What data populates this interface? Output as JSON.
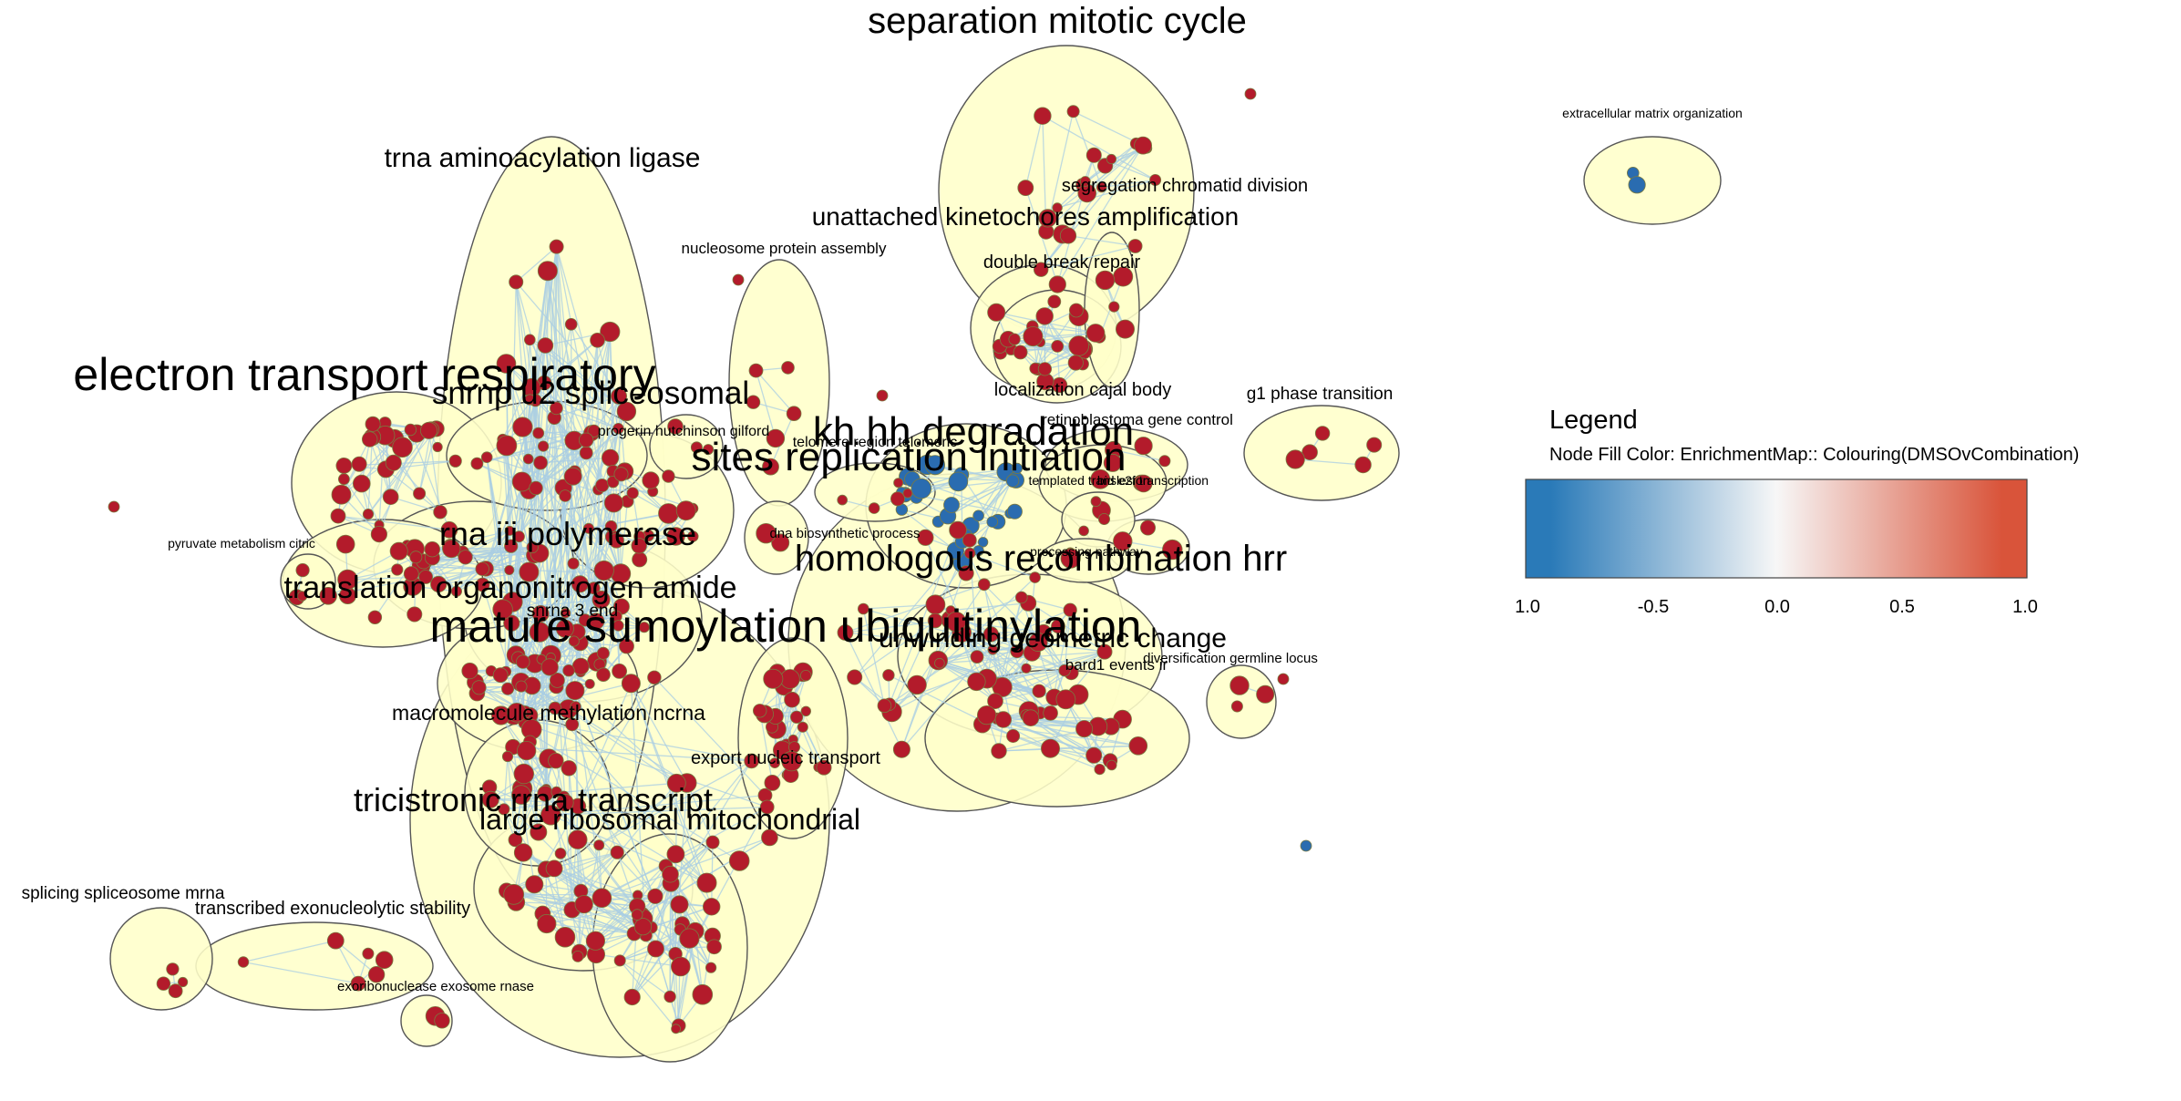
{
  "colors": {
    "cluster_fill": "#ffffc9",
    "cluster_stroke": "#555555",
    "edge": "#a9cde3",
    "node_up": "#b31b2b",
    "node_down": "#2a6cb0",
    "gradient_low": "#2a7ab8",
    "gradient_mid": "#f7f7f7",
    "gradient_high": "#d9543a"
  },
  "legend": {
    "title": "Legend",
    "subtitle": "Node Fill Color: EnrichmentMap:: Colouring(DMSOvCombination)",
    "ticks": [
      "1.0",
      "-0.5",
      "0.0",
      "0.5",
      "1.0"
    ]
  },
  "clusters": [
    {
      "label": "separation mitotic cycle"
    },
    {
      "label": "extracellular matrix organization"
    },
    {
      "label": "trna aminoacylation ligase"
    },
    {
      "label": "segregation chromatid division"
    },
    {
      "label": "unattached kinetochores amplification"
    },
    {
      "label": "nucleosome protein assembly"
    },
    {
      "label": "double break repair"
    },
    {
      "label": "electron transport respiratory"
    },
    {
      "label": "localization cajal body"
    },
    {
      "label": "g1 phase transition"
    },
    {
      "label": "snrnp u2 spliceosomal"
    },
    {
      "label": "retinoblastoma gene control"
    },
    {
      "label": "kh hh degradation"
    },
    {
      "label": "progerin hutchinson gilford"
    },
    {
      "label": "telomere region telomeric"
    },
    {
      "label": "sites replication initiation"
    },
    {
      "label": "templated translesion"
    },
    {
      "label": "bid e2f transcription"
    },
    {
      "label": "rna iii polymerase"
    },
    {
      "label": "dna biosynthetic process"
    },
    {
      "label": "pyruvate metabolism citric"
    },
    {
      "label": "homologous recombination hrr"
    },
    {
      "label": "processing pathway"
    },
    {
      "label": "translation organonitrogen amide"
    },
    {
      "label": "snrna 3 end"
    },
    {
      "label": "mature sumoylation ubiquitinylation"
    },
    {
      "label": "unwinding geometric change"
    },
    {
      "label": "diversification germline locus"
    },
    {
      "label": "bard1 events ir"
    },
    {
      "label": "macromolecule methylation ncrna"
    },
    {
      "label": "export nucleic transport"
    },
    {
      "label": "tricistronic rrna transcript"
    },
    {
      "label": "large ribosomal mitochondrial"
    },
    {
      "label": "splicing spliceosome mrna"
    },
    {
      "label": "transcribed exonucleolytic stability"
    },
    {
      "label": "exoribonuclease exosome rnase"
    }
  ]
}
